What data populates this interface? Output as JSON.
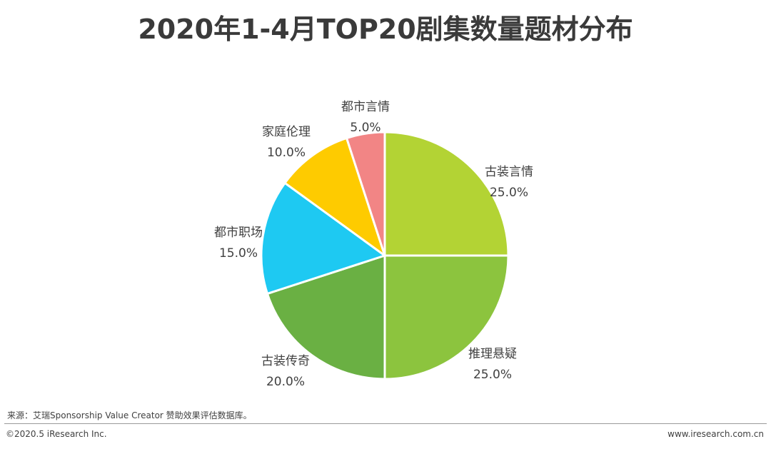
{
  "chart_data": {
    "type": "pie",
    "title": "2020年1-4月TOP20剧集数量题材分布",
    "slices": [
      {
        "label": "古装言情",
        "value": 25.0,
        "display": "25.0%",
        "color": "#b3d334"
      },
      {
        "label": "推理悬疑",
        "value": 25.0,
        "display": "25.0%",
        "color": "#8cc43e"
      },
      {
        "label": "古装传奇",
        "value": 20.0,
        "display": "20.0%",
        "color": "#6ab043"
      },
      {
        "label": "都市职场",
        "value": 15.0,
        "display": "15.0%",
        "color": "#1ec9f2"
      },
      {
        "label": "家庭伦理",
        "value": 10.0,
        "display": "10.0%",
        "color": "#fecb00"
      },
      {
        "label": "都市言情",
        "value": 5.0,
        "display": "5.0%",
        "color": "#f28585"
      }
    ]
  },
  "footer": {
    "source": "来源：艾瑞Sponsorship Value Creator 赞助效果评估数据库。",
    "copyright": "©2020.5 iResearch Inc.",
    "website": "www.iresearch.com.cn"
  }
}
